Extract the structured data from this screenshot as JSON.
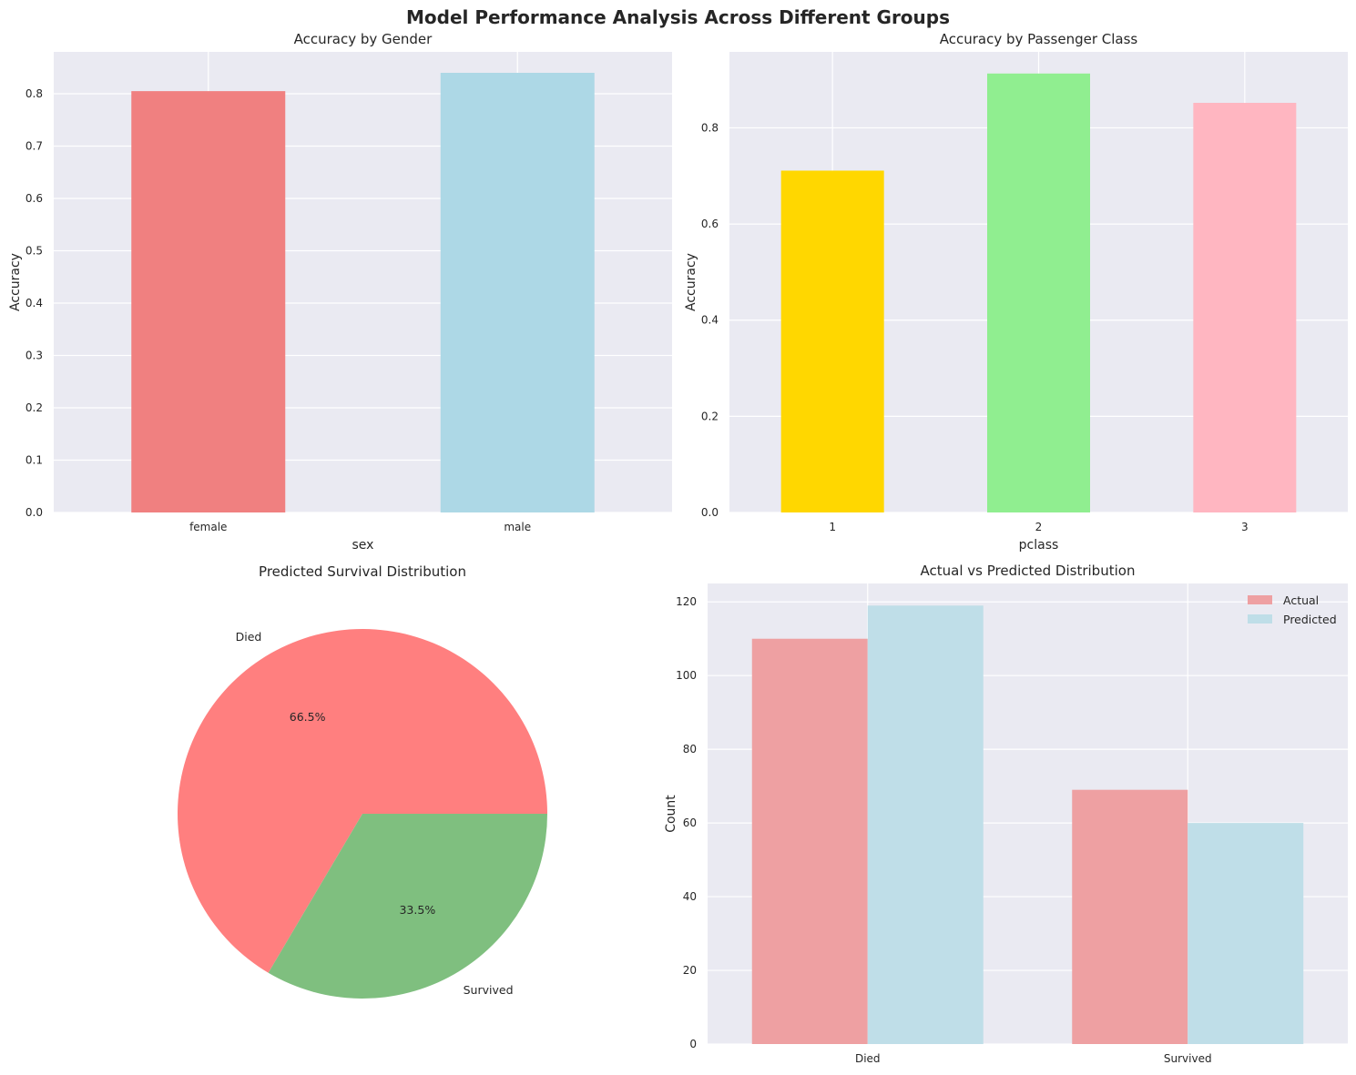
{
  "figure": {
    "title": "Model Performance Analysis Across Different Groups",
    "background": "#eaeaf2",
    "grid_color": "#ffffff"
  },
  "chart_data": [
    {
      "type": "bar",
      "title": "Accuracy by Gender",
      "xlabel": "sex",
      "ylabel": "Accuracy",
      "categories": [
        "female",
        "male"
      ],
      "values": [
        0.805,
        0.84
      ],
      "colors": [
        "#f08080",
        "#add8e6"
      ],
      "ylim": [
        0,
        0.88
      ],
      "yticks": [
        0.0,
        0.1,
        0.2,
        0.3,
        0.4,
        0.5,
        0.6,
        0.7,
        0.8
      ],
      "ytick_labels": [
        "0.0",
        "0.1",
        "0.2",
        "0.3",
        "0.4",
        "0.5",
        "0.6",
        "0.7",
        "0.8"
      ],
      "grid": true
    },
    {
      "type": "bar",
      "title": "Accuracy by Passenger Class",
      "xlabel": "pclass",
      "ylabel": "Accuracy",
      "categories": [
        "1",
        "2",
        "3"
      ],
      "values": [
        0.711,
        0.913,
        0.852
      ],
      "colors": [
        "#ffd700",
        "#90ee90",
        "#ffb6c1"
      ],
      "ylim": [
        0,
        0.958
      ],
      "yticks": [
        0.0,
        0.2,
        0.4,
        0.6,
        0.8
      ],
      "ytick_labels": [
        "0.0",
        "0.2",
        "0.4",
        "0.6",
        "0.8"
      ],
      "grid": true
    },
    {
      "type": "pie",
      "title": "Predicted Survival Distribution",
      "labels": [
        "Died",
        "Survived"
      ],
      "values": [
        66.5,
        33.5
      ],
      "pct_labels": [
        "66.5%",
        "33.5%"
      ],
      "colors": [
        "#ff7f7f",
        "#7fbf7f"
      ]
    },
    {
      "type": "bar",
      "title": "Actual vs Predicted Distribution",
      "xlabel": "",
      "ylabel": "Count",
      "categories": [
        "Died",
        "Survived"
      ],
      "series": [
        {
          "name": "Actual",
          "values": [
            110,
            69
          ],
          "color": "#eea0a2"
        },
        {
          "name": "Predicted",
          "values": [
            119,
            60
          ],
          "color": "#bfdee8"
        }
      ],
      "ylim": [
        0,
        125
      ],
      "yticks": [
        0,
        20,
        40,
        60,
        80,
        100,
        120
      ],
      "ytick_labels": [
        "0",
        "20",
        "40",
        "60",
        "80",
        "100",
        "120"
      ],
      "legend_position": "top-right",
      "grid": true
    }
  ]
}
